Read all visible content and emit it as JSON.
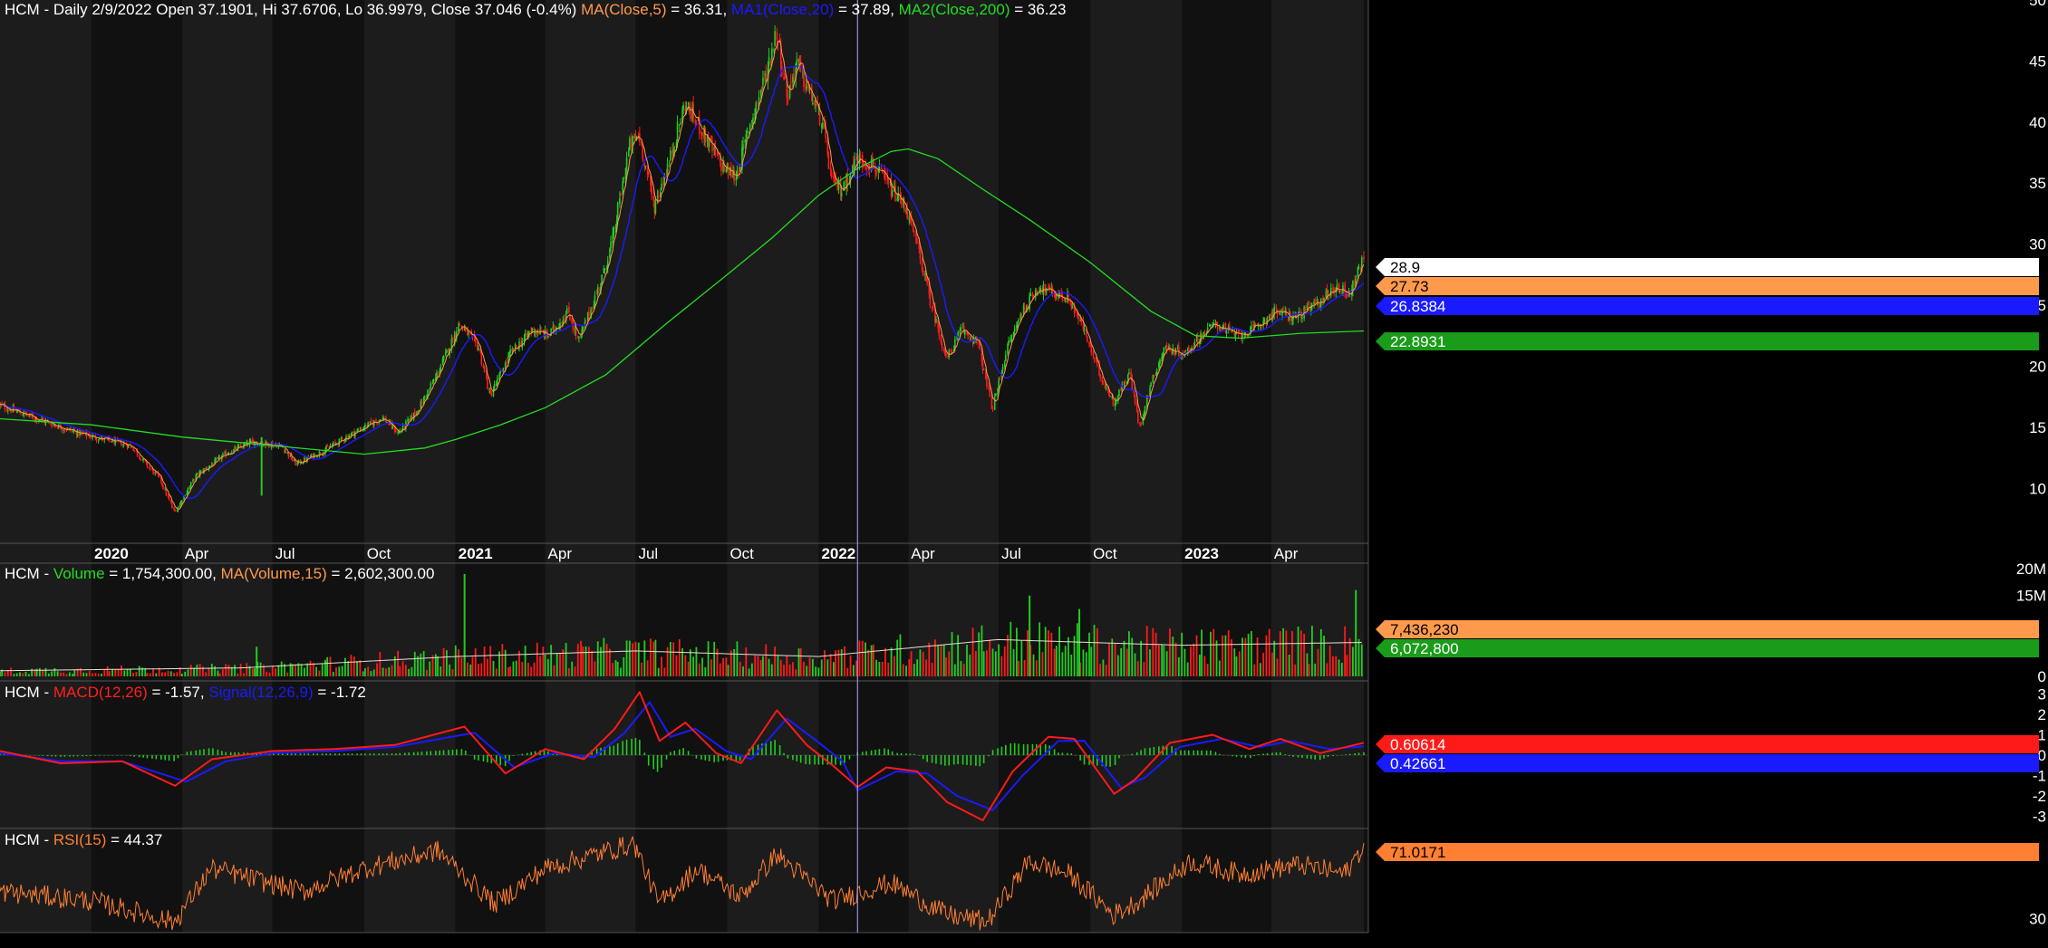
{
  "header": {
    "price": {
      "symbol": "HCM - Daily 2/9/2022",
      "open": "Open 37.1901,",
      "high": "Hi 37.6706,",
      "low": "Lo 36.9979,",
      "close": "Close 37.046 (-0.4%)",
      "ma5_label": "MA(Close,5)",
      "ma5_value": " = 36.31,",
      "ma20_label": "MA1(Close,20)",
      "ma20_value": " = 37.89,",
      "ma200_label": "MA2(Close,200)",
      "ma200_value": " = 36.23"
    },
    "volume": {
      "prefix": "HCM - ",
      "label": "Volume",
      "value": " = 1,754,300.00,",
      "ma_label": "MA(Volume,15)",
      "ma_value": " = 2,602,300.00"
    },
    "macd": {
      "prefix": "HCM - ",
      "label": "MACD(12,26)",
      "value": " = -1.57,",
      "signal_label": "Signal(12,26,9)",
      "signal_value": " = -1.72"
    },
    "rsi": {
      "prefix": "HCM - ",
      "label": "RSI(15)",
      "value": " = 44.37"
    }
  },
  "colors": {
    "background": "#000000",
    "band_dark": "#111111",
    "band_light": "#1c1c1c",
    "up": "#22cc22",
    "down": "#ff1a1a",
    "ma5": "#ff9a4d",
    "ma20": "#1a1aff",
    "ma200": "#22dd22",
    "macd": "#ff1a1a",
    "signal": "#1a1aff",
    "rsi": "#ff7f33",
    "crosshair": "#aaaaff"
  },
  "chart_data": [
    {
      "type": "candlestick",
      "title": "HCM - Daily",
      "x_tick_labels": [
        "2020",
        "Apr",
        "Jul",
        "Oct",
        "2021",
        "Apr",
        "Jul",
        "Oct",
        "2022",
        "Apr",
        "Jul",
        "Oct",
        "2023",
        "Apr"
      ],
      "y_tick_labels": [
        "10",
        "15",
        "20",
        "25",
        "30",
        "35",
        "40",
        "45",
        "50"
      ],
      "ylim": [
        5.5,
        50
      ],
      "price_path": [
        [
          "2019-10-01",
          16.8
        ],
        [
          "2019-11-15",
          15.5
        ],
        [
          "2019-12-20",
          14.5
        ],
        [
          "2020-01-15",
          14.0
        ],
        [
          "2020-02-10",
          13.5
        ],
        [
          "2020-02-25",
          12.0
        ],
        [
          "2020-03-10",
          10.8
        ],
        [
          "2020-03-25",
          8.0
        ],
        [
          "2020-04-15",
          11.0
        ],
        [
          "2020-05-15",
          12.8
        ],
        [
          "2020-06-10",
          13.8
        ],
        [
          "2020-07-10",
          13.5
        ],
        [
          "2020-07-25",
          12.0
        ],
        [
          "2020-08-20",
          13.0
        ],
        [
          "2020-09-20",
          14.5
        ],
        [
          "2020-10-20",
          15.8
        ],
        [
          "2020-11-05",
          14.5
        ],
        [
          "2020-11-25",
          16.5
        ],
        [
          "2020-12-15",
          19.5
        ],
        [
          "2021-01-05",
          23.5
        ],
        [
          "2021-01-25",
          21.5
        ],
        [
          "2021-02-05",
          17.5
        ],
        [
          "2021-02-25",
          21.0
        ],
        [
          "2021-03-20",
          23.0
        ],
        [
          "2021-04-05",
          22.5
        ],
        [
          "2021-04-25",
          24.5
        ],
        [
          "2021-05-05",
          22.0
        ],
        [
          "2021-05-30",
          27.5
        ],
        [
          "2021-06-10",
          31.0
        ],
        [
          "2021-06-25",
          38.0
        ],
        [
          "2021-07-05",
          39.0
        ],
        [
          "2021-07-20",
          33.0
        ],
        [
          "2021-08-05",
          37.0
        ],
        [
          "2021-08-20",
          41.5
        ],
        [
          "2021-09-05",
          39.5
        ],
        [
          "2021-09-25",
          36.5
        ],
        [
          "2021-10-10",
          35.5
        ],
        [
          "2021-10-25",
          40.0
        ],
        [
          "2021-11-10",
          44.0
        ],
        [
          "2021-11-20",
          47.5
        ],
        [
          "2021-12-01",
          42.0
        ],
        [
          "2021-12-10",
          45.0
        ],
        [
          "2021-12-20",
          43.0
        ],
        [
          "2022-01-05",
          40.0
        ],
        [
          "2022-01-15",
          35.0
        ],
        [
          "2022-01-25",
          34.5
        ],
        [
          "2022-02-09",
          37.0
        ],
        [
          "2022-02-25",
          36.5
        ],
        [
          "2022-03-15",
          34.5
        ],
        [
          "2022-03-30",
          33.0
        ],
        [
          "2022-04-10",
          30.0
        ],
        [
          "2022-04-25",
          25.0
        ],
        [
          "2022-05-10",
          20.5
        ],
        [
          "2022-05-25",
          23.0
        ],
        [
          "2022-06-10",
          22.0
        ],
        [
          "2022-06-25",
          16.5
        ],
        [
          "2022-07-10",
          21.5
        ],
        [
          "2022-07-25",
          24.5
        ],
        [
          "2022-08-10",
          26.5
        ],
        [
          "2022-08-25",
          26.0
        ],
        [
          "2022-09-10",
          25.5
        ],
        [
          "2022-09-25",
          23.0
        ],
        [
          "2022-10-10",
          19.5
        ],
        [
          "2022-10-25",
          17.0
        ],
        [
          "2022-11-10",
          19.5
        ],
        [
          "2022-11-20",
          15.0
        ],
        [
          "2022-12-01",
          18.5
        ],
        [
          "2022-12-15",
          21.5
        ],
        [
          "2023-01-05",
          21.0
        ],
        [
          "2023-01-20",
          22.5
        ],
        [
          "2023-02-05",
          23.5
        ],
        [
          "2023-02-25",
          22.5
        ],
        [
          "2023-03-15",
          23.0
        ],
        [
          "2023-04-05",
          24.5
        ],
        [
          "2023-04-25",
          24.0
        ],
        [
          "2023-05-15",
          25.0
        ],
        [
          "2023-06-05",
          26.5
        ],
        [
          "2023-06-20",
          26.0
        ],
        [
          "2023-07-03",
          28.9
        ]
      ],
      "ma200_path": [
        [
          "2019-10-01",
          15.7
        ],
        [
          "2020-01-01",
          15.2
        ],
        [
          "2020-04-01",
          14.2
        ],
        [
          "2020-07-01",
          13.5
        ],
        [
          "2020-10-01",
          12.8
        ],
        [
          "2020-12-01",
          13.3
        ],
        [
          "2021-01-01",
          14.0
        ],
        [
          "2021-02-15",
          15.2
        ],
        [
          "2021-04-01",
          16.6
        ],
        [
          "2021-06-01",
          19.3
        ],
        [
          "2021-08-01",
          23.5
        ],
        [
          "2021-10-01",
          27.5
        ],
        [
          "2021-11-15",
          30.5
        ],
        [
          "2022-01-01",
          34.0
        ],
        [
          "2022-02-09",
          36.2
        ],
        [
          "2022-03-15",
          37.6
        ],
        [
          "2022-04-01",
          37.8
        ],
        [
          "2022-05-01",
          37.0
        ],
        [
          "2022-06-15",
          34.5
        ],
        [
          "2022-08-01",
          32.0
        ],
        [
          "2022-10-01",
          28.5
        ],
        [
          "2022-12-01",
          24.5
        ],
        [
          "2023-01-15",
          22.5
        ],
        [
          "2023-03-01",
          22.3
        ],
        [
          "2023-05-01",
          22.7
        ],
        [
          "2023-07-03",
          22.89
        ]
      ],
      "last_values": {
        "close": "28.9",
        "ma5": "27.73",
        "ma20": "26.8384",
        "ma200": "22.8931"
      },
      "crosshair_date": "2022-02-09"
    },
    {
      "type": "bar",
      "title": "HCM - Volume",
      "y_tick_labels": [
        "0",
        "15M",
        "20M"
      ],
      "ylim": [
        0,
        21000000
      ],
      "typical_volume": [
        [
          "2019-10-01",
          1000000
        ],
        [
          "2020-06-01",
          1500000
        ],
        [
          "2021-01-01",
          3500000
        ],
        [
          "2021-07-01",
          4500000
        ],
        [
          "2022-01-01",
          3500000
        ],
        [
          "2022-07-01",
          6500000
        ],
        [
          "2023-01-01",
          5500000
        ],
        [
          "2023-07-03",
          6000000
        ]
      ],
      "spikes": [
        [
          "2020-06-15",
          5500000
        ],
        [
          "2021-01-10",
          19000000
        ],
        [
          "2022-08-01",
          15000000
        ],
        [
          "2022-09-20",
          12500000
        ],
        [
          "2023-06-25",
          16000000
        ]
      ],
      "last_values": {
        "volume": "7,436,230",
        "ma": "6,072,800"
      }
    },
    {
      "type": "line",
      "title": "HCM - MACD",
      "y_tick_labels": [
        "3",
        "2",
        "1",
        "0",
        "-1",
        "-2",
        "-3"
      ],
      "ylim": [
        -3.6,
        3.6
      ],
      "macd_path": [
        [
          "2019-10-01",
          0.2
        ],
        [
          "2019-12-01",
          -0.4
        ],
        [
          "2020-02-01",
          -0.3
        ],
        [
          "2020-03-25",
          -1.5
        ],
        [
          "2020-05-01",
          -0.2
        ],
        [
          "2020-07-01",
          0.2
        ],
        [
          "2020-09-01",
          0.3
        ],
        [
          "2020-11-01",
          0.5
        ],
        [
          "2021-01-10",
          1.4
        ],
        [
          "2021-02-20",
          -0.9
        ],
        [
          "2021-04-01",
          0.3
        ],
        [
          "2021-05-10",
          -0.2
        ],
        [
          "2021-06-10",
          1.3
        ],
        [
          "2021-07-05",
          3.1
        ],
        [
          "2021-07-25",
          0.7
        ],
        [
          "2021-08-20",
          1.6
        ],
        [
          "2021-09-20",
          0.1
        ],
        [
          "2021-10-15",
          -0.4
        ],
        [
          "2021-11-20",
          2.2
        ],
        [
          "2021-12-20",
          0.5
        ],
        [
          "2022-01-15",
          -0.5
        ],
        [
          "2022-02-09",
          -1.57
        ],
        [
          "2022-03-10",
          -0.6
        ],
        [
          "2022-04-10",
          -0.8
        ],
        [
          "2022-05-10",
          -2.3
        ],
        [
          "2022-06-15",
          -3.2
        ],
        [
          "2022-07-15",
          -0.8
        ],
        [
          "2022-08-20",
          0.9
        ],
        [
          "2022-09-15",
          0.8
        ],
        [
          "2022-10-25",
          -1.9
        ],
        [
          "2022-11-15",
          -1.2
        ],
        [
          "2022-12-20",
          0.6
        ],
        [
          "2023-02-01",
          1.0
        ],
        [
          "2023-03-10",
          0.3
        ],
        [
          "2023-04-10",
          0.8
        ],
        [
          "2023-05-20",
          0.1
        ],
        [
          "2023-07-03",
          0.61
        ]
      ],
      "signal_path": [
        [
          "2019-10-01",
          0.1
        ],
        [
          "2019-12-01",
          -0.3
        ],
        [
          "2020-02-01",
          -0.3
        ],
        [
          "2020-04-05",
          -1.3
        ],
        [
          "2020-05-15",
          -0.3
        ],
        [
          "2020-07-01",
          0.1
        ],
        [
          "2020-09-01",
          0.2
        ],
        [
          "2020-11-01",
          0.4
        ],
        [
          "2021-01-20",
          1.1
        ],
        [
          "2021-03-01",
          -0.6
        ],
        [
          "2021-04-10",
          0.1
        ],
        [
          "2021-05-20",
          -0.1
        ],
        [
          "2021-06-20",
          1.1
        ],
        [
          "2021-07-15",
          2.6
        ],
        [
          "2021-08-05",
          0.9
        ],
        [
          "2021-08-30",
          1.3
        ],
        [
          "2021-09-30",
          0.2
        ],
        [
          "2021-10-25",
          -0.2
        ],
        [
          "2021-11-30",
          1.8
        ],
        [
          "2021-12-30",
          0.7
        ],
        [
          "2022-01-25",
          -0.3
        ],
        [
          "2022-02-09",
          -1.72
        ],
        [
          "2022-03-20",
          -0.8
        ],
        [
          "2022-04-20",
          -0.9
        ],
        [
          "2022-05-20",
          -2.0
        ],
        [
          "2022-06-25",
          -2.7
        ],
        [
          "2022-07-25",
          -1.0
        ],
        [
          "2022-08-30",
          0.7
        ],
        [
          "2022-09-25",
          0.7
        ],
        [
          "2022-11-01",
          -1.6
        ],
        [
          "2022-11-25",
          -1.1
        ],
        [
          "2022-12-30",
          0.4
        ],
        [
          "2023-02-10",
          0.8
        ],
        [
          "2023-03-20",
          0.4
        ],
        [
          "2023-04-20",
          0.7
        ],
        [
          "2023-05-30",
          0.3
        ],
        [
          "2023-07-03",
          0.43
        ]
      ],
      "last_values": {
        "macd": "0.60614",
        "signal": "0.42661"
      }
    },
    {
      "type": "line",
      "title": "HCM - RSI",
      "y_tick_labels": [
        "30"
      ],
      "ylim": [
        22,
        80
      ],
      "rsi_path": [
        [
          "2019-10-01",
          45
        ],
        [
          "2020-01-01",
          40
        ],
        [
          "2020-03-25",
          28
        ],
        [
          "2020-05-01",
          58
        ],
        [
          "2020-08-01",
          45
        ],
        [
          "2020-10-01",
          58
        ],
        [
          "2020-12-15",
          68
        ],
        [
          "2021-02-10",
          38
        ],
        [
          "2021-04-01",
          58
        ],
        [
          "2021-06-30",
          72
        ],
        [
          "2021-07-25",
          38
        ],
        [
          "2021-09-01",
          58
        ],
        [
          "2021-10-15",
          42
        ],
        [
          "2021-11-20",
          66
        ],
        [
          "2022-01-15",
          40
        ],
        [
          "2022-02-09",
          44
        ],
        [
          "2022-03-15",
          50
        ],
        [
          "2022-05-10",
          32
        ],
        [
          "2022-06-20",
          28
        ],
        [
          "2022-08-01",
          62
        ],
        [
          "2022-09-10",
          55
        ],
        [
          "2022-10-25",
          32
        ],
        [
          "2022-11-20",
          40
        ],
        [
          "2023-01-10",
          62
        ],
        [
          "2023-03-01",
          55
        ],
        [
          "2023-05-01",
          60
        ],
        [
          "2023-06-15",
          55
        ],
        [
          "2023-07-03",
          71.0171
        ]
      ],
      "last_values": {
        "rsi": "71.0171"
      }
    }
  ]
}
